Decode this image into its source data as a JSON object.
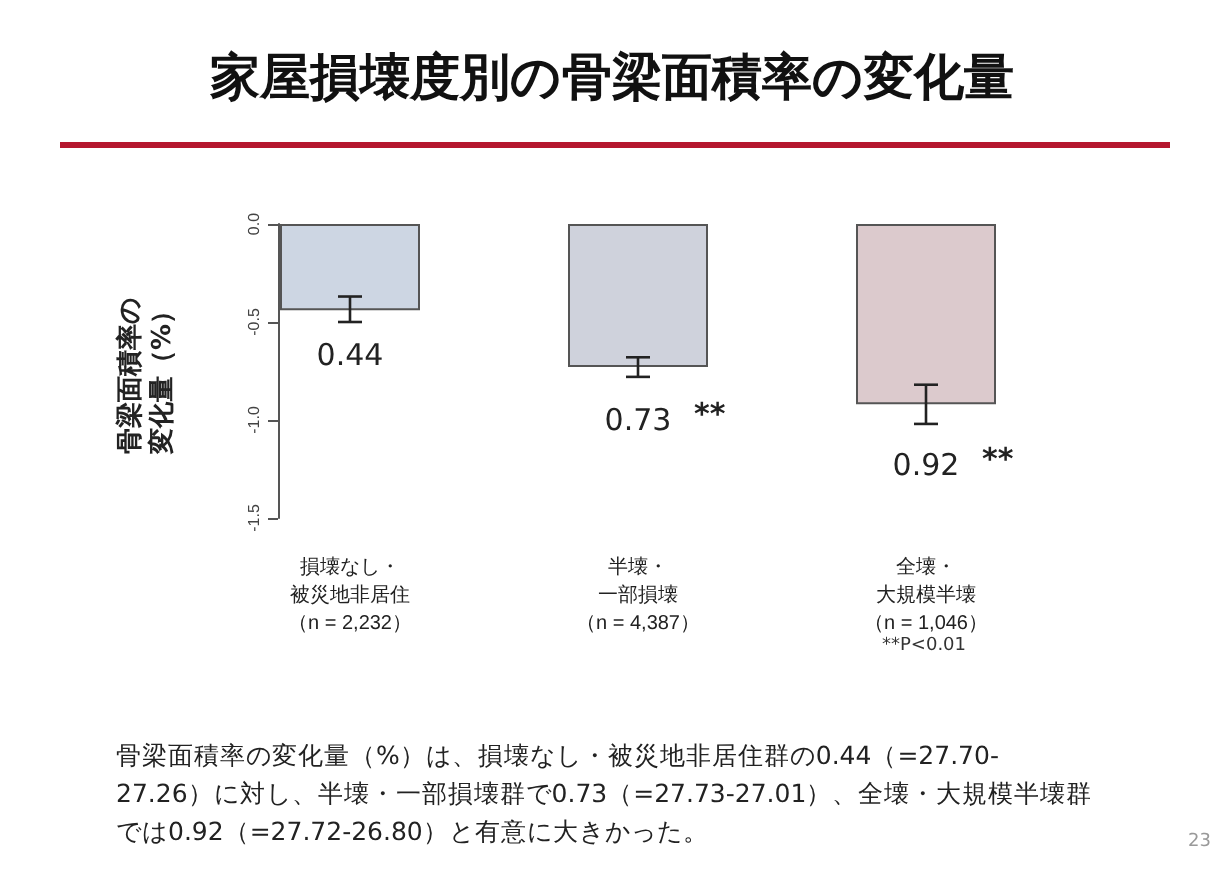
{
  "chart_data": {
    "type": "bar",
    "title": "家屋損壊度別の骨梁面積率の変化量",
    "ylabel": "骨梁面積率の変化量（%）",
    "categories": [
      "損壊なし・被災地非居住（n = 2,232）",
      "半壊・一部損壊（n = 4,387）",
      "全壊・大規模半壊（n = 1,046）"
    ],
    "values": [
      -0.44,
      -0.73,
      -0.92
    ],
    "colors": [
      "#cdd6e3",
      "#cfd2dc",
      "#dccacd"
    ],
    "errors": [
      [
        -0.5,
        -0.37
      ],
      [
        -0.78,
        -0.68
      ],
      [
        -1.02,
        -0.82
      ]
    ],
    "ylim": [
      -1.5,
      0
    ],
    "yticks": [
      {
        "value": 0,
        "label": "0.0"
      },
      {
        "value": -0.5,
        "label": "-0.5"
      },
      {
        "value": -1,
        "label": "-1.0"
      },
      {
        "value": -1.5,
        "label": "-1.5"
      }
    ],
    "grid": false,
    "annotations": [
      {
        "text": "0.44",
        "x": "損壊なし・被災地非居住（n = 2,232）",
        "y": -0.44
      },
      {
        "text": "0.73",
        "x": "半壊・一部損壊（n = 4,387）",
        "y": -0.73
      },
      {
        "text": "**",
        "x": "半壊・一部損壊（n = 4,387）",
        "y": -0.73
      },
      {
        "text": "0.92",
        "x": "全壊・大規模半壊（n = 1,046）",
        "y": -0.92
      },
      {
        "text": "**",
        "x": "全壊・大規模半壊（n = 1,046）",
        "y": -0.92
      },
      "**P<0.01",
      "骨梁面積率の変化量（%）は、損壊なし・被災地非居住群の0.44（=27.70-27.26）に対し、半壊・一部損壊群で0.73（=27.73-27.01）、全壊・大規模半壊群では0.92（=27.72-26.80）と有意に大きかった。",
      "23"
    ]
  }
}
